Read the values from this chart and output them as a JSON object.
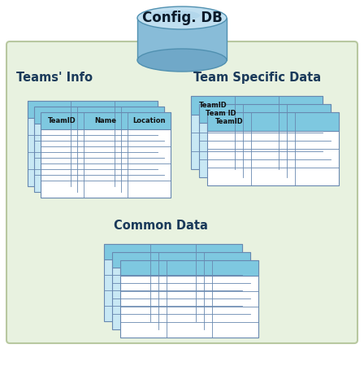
{
  "title": "Config. DB",
  "bg_color": "#e8f2e0",
  "bg_border_color": "#b8c8a0",
  "table_header_color": "#7ec8e0",
  "table_bg_color": "#c8e8f4",
  "table_border_color": "#6888b0",
  "table_fill_color": "#ffffff",
  "db_top_color": "#c0dff0",
  "db_top_color2": "#a8d0e8",
  "db_side_color": "#88bcd8",
  "db_bottom_color": "#70a8c8",
  "teams_info_label": "Teams' Info",
  "team_specific_label": "Team Specific Data",
  "common_data_label": "Common Data",
  "teams_info_cols": [
    "TeamID",
    "Name",
    "Location"
  ],
  "team_specific_cols": [
    "TeamID",
    "Team ID",
    "TeamID"
  ],
  "figw": 4.48,
  "figh": 4.5
}
